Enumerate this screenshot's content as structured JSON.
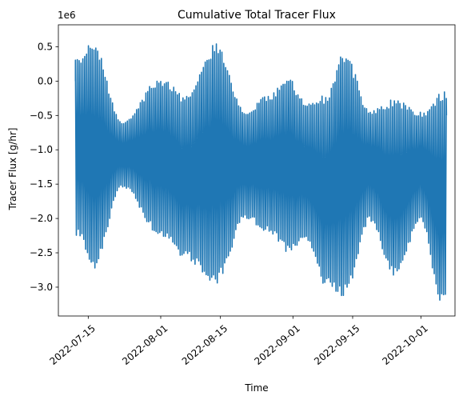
{
  "chart_data": {
    "type": "line",
    "title": "Cumulative Total Tracer Flux",
    "xlabel": "Time",
    "ylabel": "Tracer Flux [g/hr]",
    "y_offset_label": "1e6",
    "ylim": [
      -3.42,
      0.82
    ],
    "y_scale_factor": 1000000,
    "xlim": [
      "2022-07-08T00:00",
      "2022-10-09T00:00"
    ],
    "x_ticks": [
      "2022-07-15",
      "2022-08-01",
      "2022-08-15",
      "2022-09-01",
      "2022-09-15",
      "2022-10-01"
    ],
    "y_ticks": [
      -3.0,
      -2.5,
      -2.0,
      -1.5,
      -1.0,
      -0.5,
      0.0,
      0.5
    ],
    "y_tick_labels": [
      "−3.0",
      "−2.5",
      "−2.0",
      "−1.5",
      "−1.0",
      "−0.5",
      "0.0",
      "0.5"
    ],
    "grid": false,
    "legend": "none",
    "color": "#1f77b4",
    "x_range": [
      "2022-07-12T00:00",
      "2022-10-07T00:00"
    ],
    "start_value": 0.0,
    "end_value": -0.5,
    "series": [
      {
        "x": [
          "2022-07-13",
          "2022-07-16",
          "2022-07-23",
          "2022-08-01",
          "2022-08-07",
          "2022-08-14",
          "2022-08-21",
          "2022-08-26",
          "2022-08-31",
          "2022-09-04",
          "2022-09-09",
          "2022-09-13",
          "2022-09-19",
          "2022-09-25",
          "2022-10-01",
          "2022-10-06"
        ],
        "y_high": [
          0.35,
          0.6,
          -0.6,
          0.05,
          -0.2,
          0.55,
          -0.45,
          -0.2,
          0.05,
          -0.3,
          -0.2,
          0.45,
          -0.4,
          -0.25,
          -0.45,
          -0.15
        ],
        "y_low": [
          -2.3,
          -2.75,
          -1.55,
          -2.25,
          -2.6,
          -2.95,
          -2.0,
          -2.2,
          -2.5,
          -2.35,
          -3.0,
          -3.15,
          -2.05,
          -2.85,
          -2.05,
          -3.25
        ]
      }
    ]
  }
}
